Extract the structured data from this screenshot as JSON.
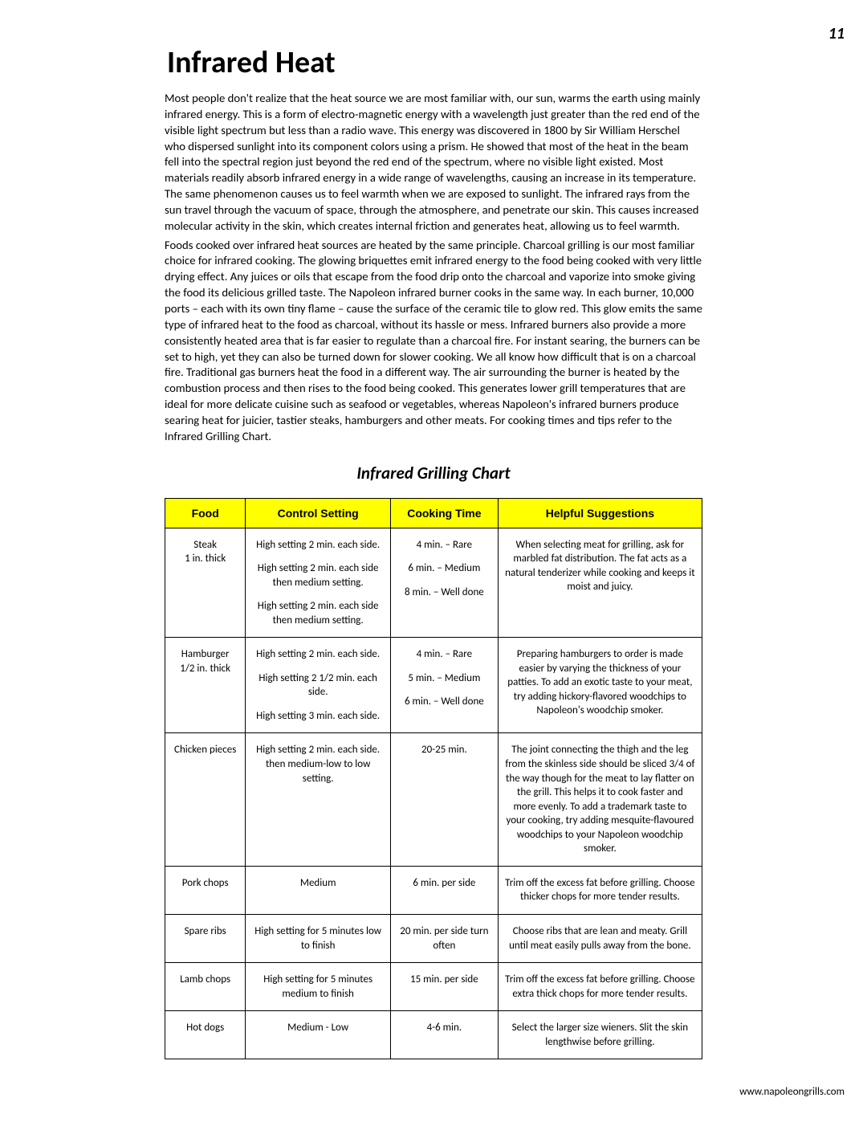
{
  "pageNumber": "11",
  "title": "Infrared Heat",
  "paragraphs": [
    "Most people don't realize that the heat source we are most familiar with, our sun, warms the earth using mainly infrared energy. This is a form of electro-magnetic energy with a wavelength just greater than the red end of the visible light spectrum but less than a radio wave.  This energy was discovered in 1800 by Sir William Herschel who dispersed sunlight into its component colors using a prism. He showed that most of the heat in the beam fell into the spectral region just beyond the red end of the spectrum, where no visible light existed. Most materials readily absorb infrared energy in a wide range of wavelengths, causing an increase in its temperature. The same phenomenon causes us to feel warmth when we are exposed to sunlight. The infrared rays from the sun travel through the vacuum of space, through the atmosphere, and penetrate our skin. This causes increased molecular activity in the skin, which creates internal friction and generates heat, allowing us to feel warmth.",
    "Foods cooked over infrared heat sources are heated by the same principle. Charcoal grilling is our most familiar choice for infrared cooking. The glowing briquettes emit infrared energy to the food being cooked with very little drying effect.  Any juices or oils that escape from the food drip onto the charcoal and vaporize into smoke giving the food its delicious grilled taste. The Napoleon infrared burner cooks in the same way. In each burner, 10,000 ports – each with its own tiny flame – cause the surface of the ceramic tile to glow red. This glow emits the same type of infrared heat to the food as charcoal, without its hassle or mess. Infrared burners also provide a more consistently heated area that is far easier to regulate than a charcoal fire. For instant searing, the burners can be set to high, yet they can also be turned down for slower cooking. We all know how difficult that is on a charcoal fire. Traditional gas burners heat the food in a different way. The air surrounding the burner is heated by the combustion process and then rises to the food being cooked. This generates lower grill temperatures that are ideal for more delicate cuisine such as seafood or vegetables, whereas Napoleon's infrared burners produce searing heat for juicier, tastier steaks, hamburgers and other meats.  For cooking times and tips refer to the Infrared Grilling Chart."
  ],
  "chartTitle": "Infrared Grilling Chart",
  "table": {
    "headers": [
      "Food",
      "Control Setting",
      "Cooking Time",
      "Helpful Suggestions"
    ],
    "rows": [
      {
        "food": [
          "Steak",
          "1 in. thick"
        ],
        "control": [
          "High setting 2 min. each side.",
          "High setting 2 min. each side then medium setting.",
          "High setting 2 min. each side then medium setting."
        ],
        "time": [
          "4 min. – Rare",
          "6 min. – Medium",
          "8 min. – Well done"
        ],
        "suggest": "When selecting meat for grilling, ask for marbled fat distribution. The fat acts as a natural tenderizer while cooking and keeps it moist and juicy."
      },
      {
        "food": [
          "Hamburger",
          "1/2 in. thick"
        ],
        "control": [
          "High setting 2 min. each side.",
          "High setting 2 1/2 min. each side.",
          "High setting 3 min. each side."
        ],
        "time": [
          "4 min. – Rare",
          "5 min. – Medium",
          "6 min. – Well done"
        ],
        "suggest": "Preparing hamburgers to order is made easier by varying the thickness of your patties. To add an exotic taste to your meat, try adding hickory-flavored woodchips to Napoleon's woodchip smoker."
      },
      {
        "food": [
          "Chicken pieces"
        ],
        "control": [
          "High setting 2 min. each side. then medium-low to low setting."
        ],
        "time": [
          "20-25 min."
        ],
        "suggest": "The joint connecting the thigh and the leg from the skinless side should be sliced 3/4 of the way though for the meat to lay flatter on the grill.  This helps it to cook faster and more evenly.  To add a trademark taste to your cooking, try adding mesquite-flavoured woodchips to your Napoleon woodchip smoker."
      },
      {
        "food": [
          "Pork chops"
        ],
        "control": [
          "Medium"
        ],
        "time": [
          "6 min. per side"
        ],
        "suggest": "Trim off the excess fat before grilling. Choose thicker chops for more tender results."
      },
      {
        "food": [
          "Spare ribs"
        ],
        "control": [
          "High setting for 5 minutes low to finish"
        ],
        "time": [
          "20 min. per side turn often"
        ],
        "suggest": "Choose ribs that are lean and meaty. Grill until meat easily pulls away from the bone."
      },
      {
        "food": [
          "Lamb chops"
        ],
        "control": [
          "High setting for 5 minutes medium to finish"
        ],
        "time": [
          "15 min. per side"
        ],
        "suggest": "Trim off the excess fat before grilling. Choose extra thick chops for more tender results."
      },
      {
        "food": [
          "Hot dogs"
        ],
        "control": [
          "Medium - Low"
        ],
        "time": [
          "4-6 min."
        ],
        "suggest": "Select the larger size wieners. Slit the skin lengthwise before grilling."
      }
    ]
  },
  "footerUrl": "www.napoleongrills.com"
}
